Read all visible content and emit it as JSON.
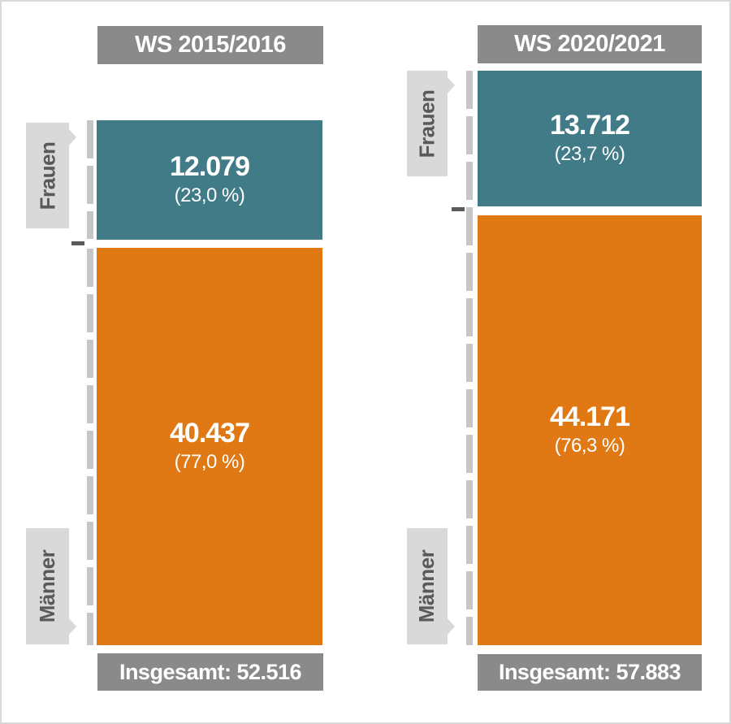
{
  "chart_data": {
    "type": "bar",
    "subtype": "proportional-stacked-columns",
    "orientation": "vertical",
    "baseline_aligned": true,
    "legend_position": "left-callouts",
    "grid": false,
    "colors": {
      "frauen": "#417B87",
      "maenner": "#E07814",
      "header_bg": "#8A8A8A",
      "callout_bg": "#D9D9D9",
      "callout_text": "#595959",
      "dash_line": "#C6C6C6",
      "tick": "#5A5A5A",
      "bar_text": "#FFFFFF"
    },
    "groups": [
      {
        "period": "WS 2015/2016",
        "total": 52516,
        "total_label": "Insgesamt: 52.516",
        "series": [
          {
            "name": "Frauen",
            "value": 12079,
            "value_label": "12.079",
            "percent": 23.0,
            "percent_label": "(23,0 %)"
          },
          {
            "name": "Männer",
            "value": 40437,
            "value_label": "40.437",
            "percent": 77.0,
            "percent_label": "(77,0 %)"
          }
        ]
      },
      {
        "period": "WS 2020/2021",
        "total": 57883,
        "total_label": "Insgesamt: 57.883",
        "series": [
          {
            "name": "Frauen",
            "value": 13712,
            "value_label": "13.712",
            "percent": 23.7,
            "percent_label": "(23,7 %)"
          },
          {
            "name": "Männer",
            "value": 44171,
            "value_label": "44.171",
            "percent": 76.3,
            "percent_label": "(76,3 %)"
          }
        ]
      }
    ]
  }
}
